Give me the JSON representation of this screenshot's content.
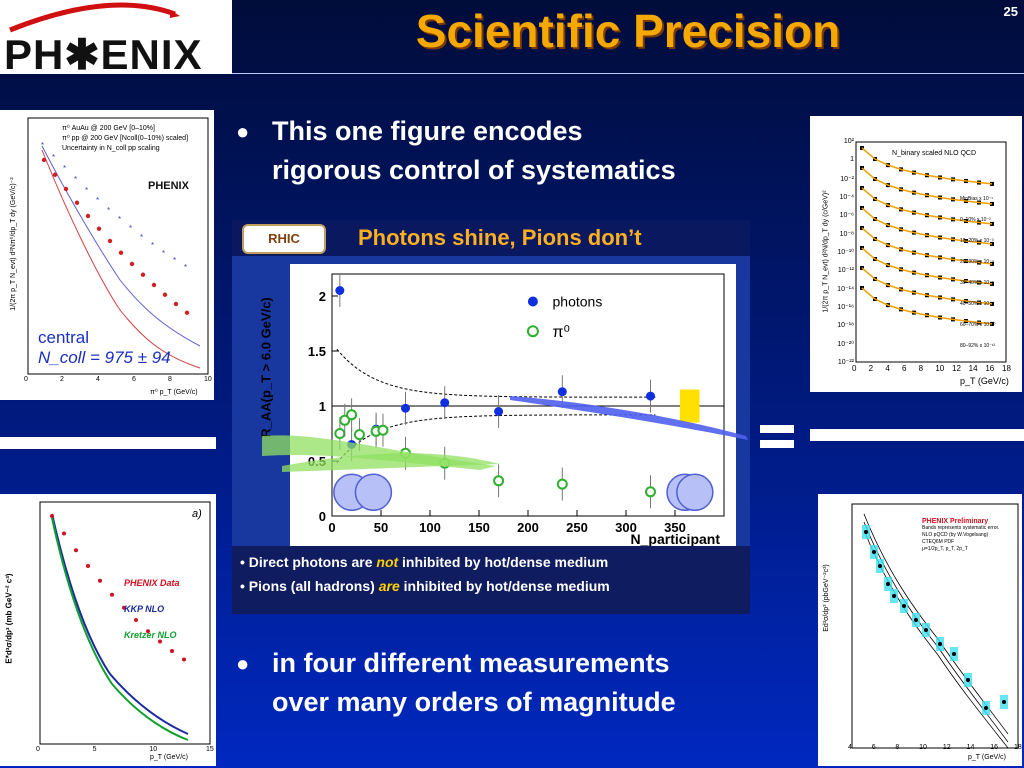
{
  "slide": {
    "number": "25",
    "title": "Scientific Precision",
    "logo": "PH✱ENIX"
  },
  "bullets": [
    {
      "line1": "This one figure encodes",
      "line2": "rigorous control of systematics"
    },
    {
      "line1": "in four different measurements",
      "line2": "over many orders of magnitude"
    }
  ],
  "top_left_plot": {
    "legend": [
      "π⁰ AuAu @ 200 GeV [0–10%]",
      "π⁰ pp @ 200 GeV [Ncoll(0–10%) scaled]",
      "Uncertainty in N_coll pp scaling"
    ],
    "ylabel": "1/(2π p_T N_evt) d²Nπ⁰/dp_T dy (GeV/c)⁻²",
    "xlabel": "π⁰ p_T (GeV/c)",
    "xticks": [
      "0",
      "2",
      "4",
      "6",
      "8",
      "10"
    ],
    "yticks": [
      "10",
      "1",
      "10⁻¹",
      "10⁻²",
      "10⁻³",
      "10⁻⁴",
      "10⁻⁵",
      "10⁻⁶"
    ],
    "logo": "PHENIX",
    "annot_line1": "central",
    "annot_line2": "N_coll = 975 ± 94"
  },
  "top_right_plot": {
    "legend": "N_binary scaled NLO QCD",
    "ylabel": "1/(2π p_T N_evt) d²N/dp_T dy (c/GeV)²",
    "xlabel": "p_T (GeV/c)",
    "xticks": [
      "0",
      "2",
      "4",
      "6",
      "8",
      "10",
      "12",
      "14",
      "16",
      "18"
    ],
    "yticks": [
      "10²",
      "1",
      "10⁻²",
      "10⁻⁴",
      "10⁻⁶",
      "10⁻⁸",
      "10⁻¹⁰",
      "10⁻¹²",
      "10⁻¹⁴",
      "10⁻¹⁶",
      "10⁻¹⁸",
      "10⁻²⁰",
      "10⁻²²"
    ],
    "series_labels": [
      "MinBias x 10⁻¹",
      "0–10%  x 10⁻²",
      "10–20%  x 10⁻³",
      "20–30%  x 10⁻⁴",
      "30–40%  x 10⁻⁵",
      "40–50%  x 10⁻⁶",
      "60–70%  x 10⁻¹⁰",
      "80–92%  x 10⁻¹²"
    ]
  },
  "bottom_left_plot": {
    "panel_label": "a)",
    "ylabel": "E*d³σ/dp³ (mb GeV⁻² c³)",
    "xlabel": "p_T (GeV/c)",
    "xticks": [
      "0",
      "5",
      "10",
      "15"
    ],
    "yticks": [
      "10⁰",
      "10⁻¹",
      "10⁻²",
      "10⁻³",
      "10⁻⁴",
      "10⁻⁵",
      "10⁻⁶",
      "10⁻⁷",
      "10⁻⁸"
    ],
    "legend": [
      {
        "label": "PHENIX Data",
        "color": "#d01020"
      },
      {
        "label": "KKP NLO",
        "color": "#1a2aa0"
      },
      {
        "label": "Kretzer NLO",
        "color": "#10a030"
      }
    ]
  },
  "bottom_right_plot": {
    "ylabel": "Ed³σ/dp³ (pbGeV⁻²c³)",
    "xlabel": "p_T (GeV/c)",
    "xticks": [
      "4",
      "6",
      "8",
      "10",
      "12",
      "14",
      "16",
      "18"
    ],
    "yticks": [
      "10³",
      "10²",
      "10",
      "1"
    ],
    "legend": [
      "PHENIX Preliminary",
      "Bands represents systematic error.",
      "NLO pQCD (by W.Vogelsang)",
      "CTEQ6M PDF",
      "μ=1/2p_T, p_T, 2p_T"
    ]
  },
  "center_figure": {
    "banner_logo": "RHIC",
    "banner_title": "Photons shine, Pions don’t",
    "ylabel": "R_AA(p_T > 6.0 GeV/c)",
    "xlabel": "N_participant",
    "legend": [
      "photons",
      "π⁰"
    ],
    "xticks": [
      "0",
      "50",
      "100",
      "150",
      "200",
      "250",
      "300",
      "350"
    ],
    "yticks": [
      "0",
      "0.5",
      "1",
      "1.5",
      "2"
    ],
    "notes": [
      {
        "a": "Direct photons are ",
        "em": "not",
        "b": " inhibited by hot/dense medium"
      },
      {
        "a": "Pions (all hadrons) ",
        "em": "are",
        "b": " inhibited by hot/dense medium"
      }
    ]
  },
  "chart_data": {
    "type": "scatter",
    "xlabel": "N_participant",
    "ylabel": "R_AA(p_T > 6.0 GeV/c)",
    "xlim": [
      0,
      400
    ],
    "ylim": [
      0,
      2.2
    ],
    "series": [
      {
        "name": "photons",
        "color": "#1030e0",
        "x": [
          8,
          20,
          45,
          75,
          115,
          170,
          235,
          325
        ],
        "y": [
          2.05,
          0.65,
          0.79,
          0.98,
          1.03,
          0.95,
          1.13,
          1.09
        ]
      },
      {
        "name": "π⁰",
        "color": "#30b030",
        "x": [
          8,
          13,
          20,
          28,
          45,
          52,
          75,
          115,
          170,
          235,
          325
        ],
        "y": [
          0.75,
          0.87,
          0.92,
          0.74,
          0.77,
          0.78,
          0.57,
          0.48,
          0.32,
          0.29,
          0.22
        ]
      }
    ]
  }
}
